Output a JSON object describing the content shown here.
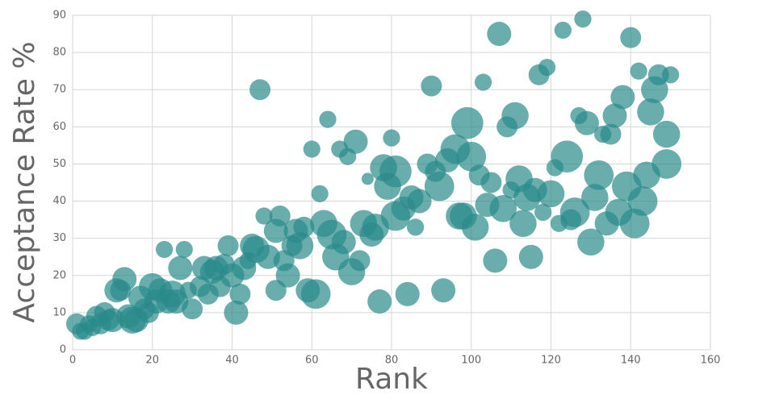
{
  "chart_data": {
    "type": "bubble",
    "x_label": "Rank",
    "y_label": "Acceptance Rate %",
    "color": "#2a8a8a",
    "grid": true,
    "xlim": [
      0,
      160
    ],
    "xticks": [
      0,
      20,
      40,
      60,
      80,
      100,
      120,
      140,
      160
    ],
    "ylim": [
      0,
      90
    ],
    "yticks": [
      0,
      10,
      20,
      30,
      40,
      50,
      60,
      70,
      80,
      90
    ],
    "x": [
      1,
      2,
      3,
      4,
      5,
      6,
      7,
      8,
      9,
      10,
      11,
      12,
      13,
      14,
      15,
      16,
      17,
      18,
      19,
      20,
      21,
      22,
      23,
      24,
      25,
      26,
      27,
      28,
      29,
      30,
      32,
      33,
      34,
      35,
      36,
      37,
      38,
      39,
      40,
      41,
      42,
      43,
      44,
      45,
      46,
      47,
      48,
      49,
      51,
      51,
      52,
      53,
      54,
      55,
      56,
      57,
      58,
      59,
      60,
      61,
      62,
      63,
      64,
      65,
      66,
      67,
      68,
      69,
      70,
      71,
      72,
      73,
      74,
      75,
      76,
      77,
      78,
      79,
      80,
      81,
      81,
      83,
      84,
      85,
      86,
      87,
      89,
      90,
      91,
      92,
      93,
      94,
      96,
      97,
      98,
      99,
      100,
      101,
      102,
      103,
      104,
      105,
      106,
      107,
      108,
      109,
      110,
      111,
      112,
      113,
      114,
      115,
      116,
      117,
      118,
      119,
      120,
      121,
      122,
      123,
      124,
      125,
      126,
      127,
      128,
      129,
      130,
      131,
      132,
      133,
      134,
      135,
      136,
      137,
      138,
      139,
      140,
      141,
      142,
      143,
      144,
      145,
      146,
      147,
      149,
      149,
      150
    ],
    "values": [
      7,
      5,
      5,
      7,
      6,
      9,
      7,
      10,
      8,
      8,
      16,
      16,
      19,
      9,
      8,
      8,
      14,
      11,
      10,
      17,
      13,
      16,
      27,
      13,
      15,
      13,
      22,
      27,
      16,
      11,
      17,
      22,
      15,
      21,
      22,
      17,
      23,
      28,
      20,
      10,
      15,
      22,
      24,
      28,
      27,
      70,
      36,
      25,
      32,
      16,
      36,
      24,
      20,
      28,
      32,
      28,
      33,
      16,
      54,
      15,
      42,
      34,
      62,
      31,
      25,
      54,
      29,
      52,
      21,
      56,
      24,
      34,
      46,
      31,
      33,
      13,
      49,
      44,
      57,
      48,
      36,
      38,
      15,
      41,
      33,
      40,
      50,
      71,
      48,
      44,
      16,
      51,
      54,
      36,
      36,
      61,
      52,
      33,
      47,
      72,
      39,
      45,
      24,
      85,
      38,
      60,
      43,
      63,
      46,
      34,
      41,
      25,
      43,
      74,
      37,
      76,
      42,
      49,
      34,
      86,
      52,
      35,
      37,
      63,
      89,
      61,
      29,
      41,
      47,
      58,
      34,
      58,
      63,
      37,
      68,
      44,
      84,
      34,
      75,
      40,
      47,
      64,
      70,
      74,
      58,
      50,
      74
    ],
    "sizes": [
      3,
      2,
      2,
      2,
      2,
      3,
      3,
      3,
      3,
      4,
      4,
      3,
      4,
      4,
      5,
      4,
      4,
      3,
      3,
      5,
      4,
      4,
      2,
      4,
      5,
      4,
      4,
      2,
      2,
      3,
      3,
      4,
      3,
      4,
      4,
      3,
      3,
      3,
      4,
      4,
      3,
      4,
      2,
      4,
      5,
      3,
      2,
      4,
      4,
      3,
      3,
      3,
      4,
      3,
      4,
      5,
      3,
      4,
      2,
      6,
      2,
      5,
      2,
      6,
      5,
      2,
      4,
      2,
      5,
      4,
      3,
      5,
      1,
      4,
      5,
      4,
      5,
      5,
      2,
      7,
      6,
      4,
      4,
      4,
      2,
      4,
      3,
      3,
      3,
      6,
      4,
      4,
      6,
      5,
      5,
      7,
      6,
      5,
      3,
      2,
      4,
      3,
      4,
      4,
      5,
      3,
      2,
      5,
      5,
      5,
      5,
      4,
      4,
      3,
      2,
      2,
      5,
      2,
      2,
      2,
      7,
      3,
      6,
      2,
      2,
      4,
      5,
      5,
      6,
      2,
      4,
      3,
      4,
      5,
      4,
      6,
      3,
      6,
      2,
      6,
      5,
      5,
      5,
      3,
      5,
      6,
      2
    ]
  }
}
